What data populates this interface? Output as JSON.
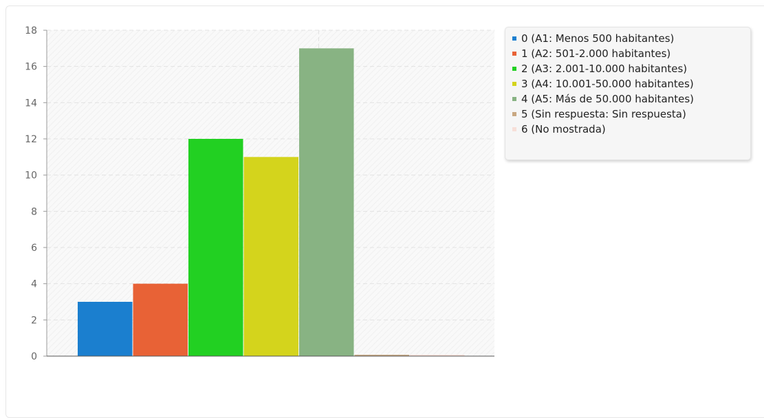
{
  "chart_data": {
    "type": "bar",
    "categories": [
      "0 (A1: Menos 500 habitantes)",
      "1 (A2: 501-2.000 habitantes)",
      "2 (A3: 2.001-10.000 habitantes)",
      "3 (A4: 10.001-50.000 habitantes)",
      "4 (A5: Más de 50.000 habitantes)",
      "5 (Sin respuesta: Sin respuesta)",
      "6 (No mostrada)"
    ],
    "values": [
      3,
      4,
      12,
      11,
      17,
      0,
      0
    ],
    "colors": [
      "#1b7fcf",
      "#e86236",
      "#22d022",
      "#d4d41c",
      "#88b383",
      "#c8a882",
      "#f7dfd8"
    ],
    "title": "",
    "xlabel": "",
    "ylabel": "",
    "ylim": [
      0,
      18
    ],
    "yticks": [
      "0",
      "2",
      "4",
      "6",
      "8",
      "10",
      "12",
      "14",
      "16",
      "18"
    ],
    "grid": true,
    "legend_position": "right"
  }
}
